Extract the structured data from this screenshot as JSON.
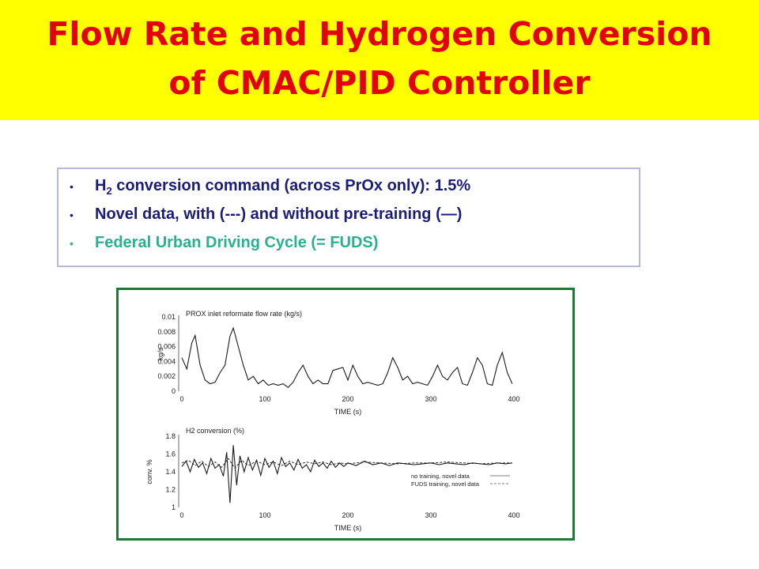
{
  "slide": {
    "title_line1": "Flow Rate and Hydrogen Conversion",
    "title_line2": "of CMAC/PID Controller",
    "bullet_mark": "•",
    "bullet1_pre": "H",
    "bullet1_sub": "2",
    "bullet1_post": " conversion command (across PrOx only): 1.5%",
    "bullet2": "Novel data, with (---) and without pre-training (—)",
    "bullet3": "Federal Urban Driving Cycle (= FUDS)"
  },
  "colors": {
    "banner": "#ffff00",
    "title": "#e3000f",
    "bullet_text": "#1c1c7a",
    "bullet_highlight": "#2ab08f",
    "figure_border": "#1f7a3a"
  },
  "chart_data": [
    {
      "type": "line",
      "title": "PROX inlet reformate flow rate (kg/s)",
      "xlabel": "TIME (s)",
      "ylabel": "kg/s",
      "xlim": [
        0,
        400
      ],
      "ylim": [
        0,
        0.01
      ],
      "xticks": [
        "0",
        "100",
        "200",
        "300",
        "400"
      ],
      "yticks": [
        "0",
        "0.002",
        "0.004",
        "0.006",
        "0.008",
        "0.01"
      ],
      "series": [
        {
          "x": [
            0,
            6,
            12,
            16,
            22,
            28,
            34,
            40,
            46,
            52,
            58,
            62,
            68,
            74,
            80,
            86,
            92,
            98,
            104,
            110,
            116,
            122,
            128,
            134,
            140,
            146,
            152,
            158,
            164,
            170,
            176,
            182,
            188,
            194,
            200,
            206,
            212,
            218,
            224,
            230,
            236,
            242,
            248,
            254,
            260,
            266,
            272,
            278,
            284,
            290,
            296,
            302,
            308,
            314,
            320,
            326,
            332,
            338,
            344,
            350,
            356,
            362,
            368,
            374,
            380,
            386,
            392,
            398
          ],
          "y": [
            0.0045,
            0.003,
            0.0065,
            0.0075,
            0.0035,
            0.0015,
            0.001,
            0.0012,
            0.0025,
            0.0035,
            0.0074,
            0.0085,
            0.006,
            0.0035,
            0.0015,
            0.002,
            0.001,
            0.0015,
            0.0008,
            0.001,
            0.0008,
            0.001,
            0.0005,
            0.0012,
            0.0025,
            0.0035,
            0.002,
            0.001,
            0.0015,
            0.001,
            0.001,
            0.0028,
            0.003,
            0.0032,
            0.0015,
            0.0035,
            0.002,
            0.001,
            0.0012,
            0.001,
            0.0008,
            0.001,
            0.0025,
            0.0045,
            0.0032,
            0.0015,
            0.002,
            0.001,
            0.0012,
            0.001,
            0.0008,
            0.002,
            0.0035,
            0.002,
            0.0015,
            0.0025,
            0.0032,
            0.001,
            0.0008,
            0.0025,
            0.0045,
            0.0035,
            0.001,
            0.0008,
            0.0035,
            0.0052,
            0.0025,
            0.001
          ]
        }
      ]
    },
    {
      "type": "line",
      "title": "H2 conversion (%)",
      "xlabel": "TIME (s)",
      "ylabel": "conv. %",
      "xlim": [
        0,
        400
      ],
      "ylim": [
        1,
        1.8
      ],
      "xticks": [
        "0",
        "100",
        "200",
        "300",
        "400"
      ],
      "yticks": [
        "1",
        "1.2",
        "1.4",
        "1.6",
        "1.8"
      ],
      "legend": {
        "position": "bottom-right",
        "entries": [
          "no training, novel data",
          "FUDS training, novel data"
        ]
      },
      "series": [
        {
          "name": "no training, novel data",
          "style": "solid",
          "x": [
            0,
            5,
            10,
            15,
            20,
            25,
            30,
            35,
            40,
            45,
            50,
            54,
            58,
            62,
            66,
            70,
            75,
            80,
            85,
            90,
            95,
            100,
            105,
            110,
            115,
            120,
            125,
            130,
            135,
            140,
            145,
            150,
            155,
            160,
            165,
            170,
            175,
            180,
            185,
            190,
            195,
            200,
            210,
            220,
            230,
            240,
            250,
            260,
            270,
            280,
            290,
            300,
            310,
            320,
            330,
            340,
            350,
            360,
            370,
            380,
            390,
            398
          ],
          "y": [
            1.46,
            1.52,
            1.4,
            1.54,
            1.45,
            1.5,
            1.38,
            1.55,
            1.44,
            1.48,
            1.35,
            1.62,
            1.05,
            1.7,
            1.25,
            1.58,
            1.4,
            1.56,
            1.42,
            1.53,
            1.36,
            1.55,
            1.45,
            1.52,
            1.38,
            1.56,
            1.46,
            1.5,
            1.42,
            1.54,
            1.44,
            1.48,
            1.4,
            1.53,
            1.46,
            1.5,
            1.44,
            1.52,
            1.45,
            1.5,
            1.46,
            1.5,
            1.47,
            1.52,
            1.48,
            1.5,
            1.47,
            1.5,
            1.49,
            1.48,
            1.49,
            1.5,
            1.48,
            1.5,
            1.49,
            1.48,
            1.5,
            1.49,
            1.48,
            1.5,
            1.49,
            1.5
          ]
        },
        {
          "name": "FUDS training, novel data",
          "style": "dashed",
          "x": [
            0,
            8,
            16,
            24,
            32,
            40,
            48,
            56,
            64,
            72,
            80,
            90,
            100,
            110,
            120,
            130,
            140,
            150,
            160,
            170,
            180,
            190,
            200,
            220,
            240,
            260,
            280,
            300,
            320,
            340,
            360,
            380,
            398
          ],
          "y": [
            1.5,
            1.53,
            1.47,
            1.52,
            1.46,
            1.51,
            1.45,
            1.55,
            1.44,
            1.53,
            1.47,
            1.52,
            1.48,
            1.51,
            1.47,
            1.52,
            1.48,
            1.51,
            1.49,
            1.51,
            1.48,
            1.5,
            1.49,
            1.51,
            1.5,
            1.49,
            1.5,
            1.5,
            1.51,
            1.5,
            1.49,
            1.5,
            1.5
          ]
        }
      ]
    }
  ]
}
